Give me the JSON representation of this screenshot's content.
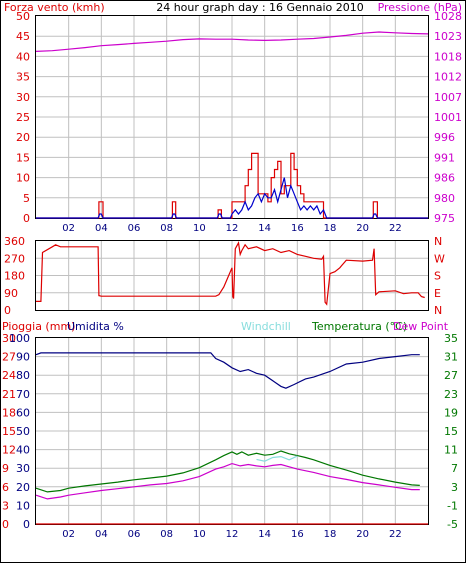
{
  "page": {
    "title": "24 hour graph day : 16 Gennaio 2010"
  },
  "colors": {
    "wind_red": "#dd0000",
    "wind_blue": "#0000cc",
    "pressure_magenta": "#cc00cc",
    "direction_red": "#dd0000",
    "rain_red": "#dd0000",
    "humidity_blue": "#000080",
    "windchill_cyan": "#88dddd",
    "temperature_green": "#007700",
    "dewpoint_magenta": "#cc00cc",
    "grid": "#c0c0c0",
    "frame": "#000000"
  },
  "chart_data": [
    {
      "type": "line",
      "panel": "wind-pressure",
      "ylabel_left": "Forza vento (kmh)",
      "ylabel_right": "Pressione (hPa)",
      "ylim_left": [
        0,
        50
      ],
      "ylim_right": [
        975,
        1028
      ],
      "yticks_left": [
        "0",
        "5",
        "10",
        "15",
        "20",
        "25",
        "30",
        "35",
        "40",
        "45",
        "50"
      ],
      "yticks_right": [
        "975",
        "980",
        "986",
        "991",
        "996",
        "1001",
        "1007",
        "1012",
        "1018",
        "1023",
        "1028"
      ],
      "xlim": [
        0,
        24
      ],
      "xticks": [
        "02",
        "04",
        "06",
        "08",
        "10",
        "12",
        "14",
        "16",
        "18",
        "20",
        "22"
      ],
      "series": [
        {
          "key": "pressure",
          "axis": "right",
          "color_key": "pressure_magenta",
          "x": [
            0,
            1,
            2,
            3,
            4,
            5,
            6,
            7,
            8,
            9,
            10,
            11,
            12,
            13,
            14,
            15,
            16,
            17,
            18,
            19,
            20,
            21,
            22,
            23,
            24
          ],
          "y": [
            1018.7,
            1018.9,
            1019.3,
            1019.7,
            1020.2,
            1020.5,
            1020.8,
            1021.1,
            1021.4,
            1021.8,
            1022.0,
            1021.9,
            1021.9,
            1021.7,
            1021.6,
            1021.7,
            1021.9,
            1022.1,
            1022.5,
            1022.9,
            1023.5,
            1023.8,
            1023.6,
            1023.4,
            1023.3
          ]
        },
        {
          "key": "gust",
          "axis": "left",
          "color_key": "wind_red",
          "step": true,
          "x": [
            0,
            3.8,
            3.85,
            4.05,
            4.1,
            8.3,
            8.35,
            8.5,
            8.55,
            11.1,
            11.15,
            11.3,
            11.35,
            11.9,
            12.0,
            12.3,
            12.5,
            12.8,
            13.0,
            13.2,
            13.4,
            13.6,
            13.8,
            14.0,
            14.2,
            14.4,
            14.6,
            14.8,
            15.0,
            15.2,
            15.4,
            15.6,
            15.8,
            16.0,
            16.2,
            16.4,
            16.6,
            17.0,
            17.4,
            17.6,
            17.8,
            20.6,
            20.65,
            20.85,
            20.9,
            24
          ],
          "y": [
            0,
            0,
            4,
            4,
            0,
            0,
            4,
            4,
            0,
            0,
            2,
            2,
            0,
            0,
            4,
            4,
            4,
            8,
            12,
            16,
            16,
            6,
            6,
            6,
            4,
            10,
            12,
            14,
            6,
            8,
            8,
            16,
            12,
            8,
            6,
            4,
            4,
            4,
            4,
            0,
            0,
            0,
            4,
            4,
            0,
            0
          ]
        },
        {
          "key": "average",
          "axis": "left",
          "color_key": "wind_blue",
          "x": [
            0,
            3.8,
            3.9,
            4.0,
            4.1,
            8.3,
            8.4,
            8.5,
            8.6,
            11.1,
            11.2,
            11.3,
            11.4,
            11.9,
            12.0,
            12.2,
            12.4,
            12.6,
            12.8,
            13.0,
            13.2,
            13.4,
            13.6,
            13.8,
            14.0,
            14.2,
            14.4,
            14.6,
            14.8,
            15.0,
            15.2,
            15.4,
            15.6,
            15.8,
            16.0,
            16.2,
            16.4,
            16.6,
            16.8,
            17.0,
            17.2,
            17.4,
            17.6,
            17.8,
            20.6,
            20.7,
            20.8,
            20.9,
            24
          ],
          "y": [
            0,
            0,
            1,
            1,
            0,
            0,
            1,
            1,
            0,
            0,
            1,
            1,
            0,
            0,
            1,
            2,
            1,
            2,
            4,
            2,
            3,
            5,
            6,
            4,
            6,
            5,
            5,
            7,
            4,
            7,
            10,
            5,
            8,
            6,
            4,
            2,
            3,
            2,
            3,
            2,
            3,
            1,
            2,
            0,
            0,
            1,
            1,
            0,
            0
          ]
        }
      ]
    },
    {
      "type": "line",
      "panel": "wind-direction",
      "ylim": [
        0,
        360
      ],
      "yticks": [
        "0",
        "90",
        "180",
        "270",
        "360"
      ],
      "yticks_right": [
        "N",
        "E",
        "S",
        "W",
        "N"
      ],
      "xlim": [
        0,
        24
      ],
      "series": [
        {
          "key": "direction",
          "color_key": "direction_red",
          "x": [
            0.0,
            0.3,
            0.4,
            1.0,
            1.2,
            1.5,
            3.8,
            3.85,
            4.0,
            4.5,
            5.0,
            6.0,
            7.0,
            8.0,
            9.0,
            10.0,
            10.5,
            11.0,
            11.2,
            11.5,
            11.8,
            12.0,
            12.05,
            12.1,
            12.2,
            12.4,
            12.5,
            12.6,
            12.8,
            13.0,
            13.5,
            14.0,
            14.5,
            15.0,
            15.5,
            16.0,
            16.5,
            17.0,
            17.5,
            17.6,
            17.7,
            17.8,
            18.0,
            18.3,
            18.6,
            18.7,
            19.0,
            20.0,
            20.6,
            20.7,
            20.8,
            21.0,
            22.0,
            22.5,
            23.0,
            23.4,
            23.6,
            23.8
          ],
          "y": [
            45,
            45,
            300,
            330,
            340,
            330,
            330,
            75,
            72,
            72,
            72,
            72,
            72,
            72,
            72,
            72,
            72,
            72,
            80,
            120,
            180,
            220,
            70,
            60,
            320,
            350,
            290,
            310,
            340,
            320,
            330,
            310,
            320,
            300,
            310,
            290,
            280,
            270,
            265,
            280,
            40,
            30,
            190,
            200,
            220,
            230,
            260,
            255,
            260,
            320,
            80,
            95,
            100,
            85,
            90,
            90,
            70,
            65
          ]
        }
      ]
    },
    {
      "type": "line",
      "panel": "rain-humidity-temperature",
      "ylabel_rain": "Pioggia (mm)",
      "ylabel_humidity": "Umidita %",
      "label_windchill": "Windchill",
      "label_temperature": "Temperatura (°C)",
      "label_dewpoint": "Dew Point",
      "ylim_rain": [
        0,
        30
      ],
      "ylim_humidity": [
        0,
        100
      ],
      "ylim_temperature": [
        -5,
        35
      ],
      "yticks_rain": [
        "0",
        "3",
        "6",
        "9",
        "12",
        "15",
        "18",
        "21",
        "24",
        "27",
        "30"
      ],
      "yticks_humidity": [
        "0",
        "10",
        "20",
        "30",
        "40",
        "50",
        "60",
        "70",
        "80",
        "90",
        "100"
      ],
      "yticks_temperature": [
        "-5",
        "-1",
        "3",
        "7",
        "11",
        "15",
        "19",
        "23",
        "27",
        "31",
        "35"
      ],
      "xlim": [
        0,
        24
      ],
      "xticks": [
        "02",
        "04",
        "06",
        "08",
        "10",
        "12",
        "14",
        "16",
        "18",
        "20",
        "22"
      ],
      "series": [
        {
          "key": "rain",
          "axis": "rain",
          "color_key": "rain_red",
          "x": [
            0,
            24
          ],
          "y": [
            0,
            0
          ]
        },
        {
          "key": "humidity",
          "axis": "humidity",
          "color_key": "humidity_blue",
          "x": [
            0,
            0.3,
            2,
            4,
            6,
            8,
            10,
            10.7,
            11,
            11.5,
            12,
            12.5,
            13,
            13.5,
            14,
            14.5,
            15,
            15.3,
            15.8,
            16.5,
            17,
            18,
            19,
            20,
            21,
            22,
            23,
            23.5
          ],
          "y": [
            91,
            92,
            92,
            92,
            92,
            92,
            92,
            92,
            89,
            87,
            84,
            82,
            83,
            81,
            80,
            77,
            74,
            73,
            75,
            78,
            79,
            82,
            86,
            87,
            89,
            90,
            91,
            91
          ]
        },
        {
          "key": "temperature",
          "axis": "temperature",
          "color_key": "temperature_green",
          "x": [
            0,
            0.7,
            1.5,
            2,
            3,
            4,
            5,
            6,
            7,
            8,
            9,
            10,
            11,
            11.5,
            12,
            12.3,
            12.6,
            13,
            13.5,
            14,
            14.5,
            15,
            15.5,
            16,
            16.5,
            17,
            18,
            19,
            20,
            21,
            22,
            23,
            23.5
          ],
          "y": [
            2.7,
            1.9,
            2.2,
            2.7,
            3.2,
            3.6,
            4.0,
            4.5,
            4.9,
            5.3,
            6.0,
            7.1,
            8.8,
            9.7,
            10.5,
            10.0,
            10.5,
            9.8,
            10.2,
            9.8,
            10.0,
            10.7,
            10.1,
            9.7,
            9.3,
            8.8,
            7.6,
            6.6,
            5.5,
            4.7,
            4.0,
            3.4,
            3.3
          ]
        },
        {
          "key": "windchill",
          "axis": "temperature",
          "color_key": "windchill_cyan",
          "x": [
            13.5,
            14.0,
            14.5,
            15.0,
            15.5,
            16.0
          ],
          "y": [
            8.9,
            8.5,
            9.3,
            9.5,
            8.8,
            9.6
          ]
        },
        {
          "key": "dewpoint",
          "axis": "temperature",
          "color_key": "dewpoint_magenta",
          "x": [
            0,
            0.7,
            1.5,
            2,
            3,
            4,
            5,
            6,
            7,
            8,
            9,
            10,
            11,
            11.5,
            12,
            12.5,
            13,
            13.5,
            14,
            14.5,
            15,
            15.5,
            16,
            17,
            18,
            19,
            20,
            21,
            22,
            23,
            23.5
          ],
          "y": [
            1.2,
            0.4,
            0.8,
            1.2,
            1.7,
            2.2,
            2.6,
            3.0,
            3.4,
            3.7,
            4.3,
            5.2,
            6.8,
            7.3,
            8.0,
            7.5,
            7.8,
            7.5,
            7.3,
            7.6,
            7.8,
            7.3,
            6.8,
            6.1,
            5.2,
            4.6,
            3.9,
            3.4,
            2.9,
            2.4,
            2.4
          ]
        }
      ]
    }
  ]
}
